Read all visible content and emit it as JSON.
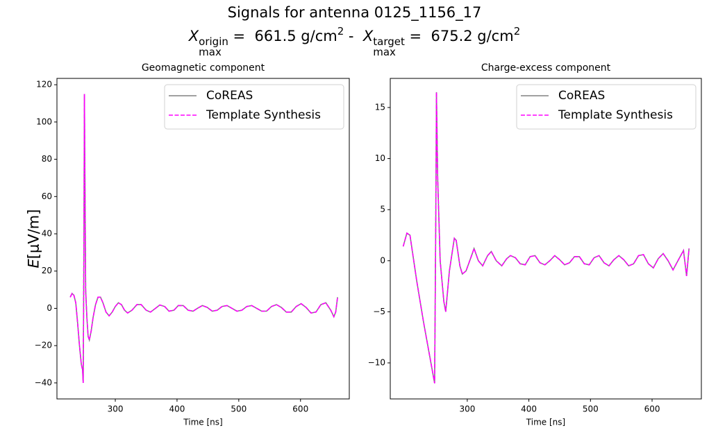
{
  "figure": {
    "title": "Signals for antenna 0125_1156_17",
    "subtitle_parts": [
      {
        "text": "X",
        "style": "italic"
      },
      {
        "sup": "origin",
        "sub": "max"
      },
      {
        "text": " =  661.5 g/cm"
      },
      {
        "sup": "2"
      },
      {
        "text": " -  "
      },
      {
        "text": "X",
        "style": "italic"
      },
      {
        "sup": "target",
        "sub": "max"
      },
      {
        "text": " =  675.2 g/cm"
      },
      {
        "sup": "2"
      }
    ]
  },
  "chart_data": [
    {
      "type": "line",
      "title": "Geomagnetic component",
      "xlabel": "Time [ns]",
      "ylabel_parts": [
        {
          "text": "E",
          "style": "italic"
        },
        {
          "text": "[μV/m]"
        }
      ],
      "xlim": [
        205.5,
        679
      ],
      "ylim": [
        -48.6,
        123.4
      ],
      "xticks": [
        300,
        400,
        500,
        600
      ],
      "yticks": [
        {
          "value": -40,
          "label": "−40"
        },
        {
          "value": -20,
          "label": "−20"
        },
        0,
        20,
        40,
        60,
        80,
        100,
        120
      ],
      "legend": "upper right",
      "x": [
        227,
        230,
        233,
        236,
        239,
        242,
        245,
        247,
        248,
        249,
        250,
        251,
        252,
        254,
        256,
        258,
        261,
        264,
        268,
        272,
        276,
        280,
        285,
        290,
        295,
        300,
        305,
        310,
        315,
        320,
        327,
        335,
        342,
        350,
        357,
        365,
        372,
        380,
        387,
        395,
        402,
        410,
        418,
        426,
        433,
        441,
        449,
        457,
        465,
        473,
        481,
        489,
        497,
        505,
        513,
        521,
        529,
        537,
        545,
        553,
        561,
        569,
        577,
        585,
        593,
        601,
        609,
        617,
        625,
        633,
        641,
        649,
        654,
        657,
        660
      ],
      "series": [
        {
          "name": "CoREAS",
          "color": "#808080",
          "dash": false,
          "values": [
            6,
            8,
            7,
            3,
            -8,
            -20,
            -30,
            -33,
            -40,
            20,
            115,
            60,
            10,
            -5,
            -15,
            -17,
            -12,
            -5,
            2,
            6,
            6,
            3,
            -2,
            -4,
            -2,
            1,
            3,
            2,
            -1,
            -2.5,
            -1,
            2,
            2,
            -1,
            -2,
            0,
            1.8,
            1,
            -1.5,
            -1,
            1.5,
            1.5,
            -1,
            -1.5,
            0,
            1.5,
            0.5,
            -1.5,
            -1,
            1,
            1.5,
            0,
            -1.5,
            -1,
            1,
            1.5,
            0,
            -1.5,
            -1.5,
            1,
            2,
            0.5,
            -2,
            -2,
            1,
            2.5,
            0.5,
            -2.5,
            -2,
            2,
            3,
            -1,
            -4.5,
            -2,
            6
          ]
        },
        {
          "name": "Template Synthesis",
          "color": "#ff00ff",
          "dash": true,
          "values": [
            6,
            8,
            7,
            3,
            -8,
            -20,
            -30,
            -33,
            -40,
            20,
            115,
            60,
            10,
            -5,
            -15,
            -17,
            -12,
            -5,
            2,
            6,
            6,
            3,
            -2,
            -4,
            -2,
            1,
            3,
            2,
            -1,
            -2.5,
            -1,
            2,
            2,
            -1,
            -2,
            0,
            1.8,
            1,
            -1.5,
            -1,
            1.5,
            1.5,
            -1,
            -1.5,
            0,
            1.5,
            0.5,
            -1.5,
            -1,
            1,
            1.5,
            0,
            -1.5,
            -1,
            1,
            1.5,
            0,
            -1.5,
            -1.5,
            1,
            2,
            0.5,
            -2,
            -2,
            1,
            2.5,
            0.5,
            -2.5,
            -2,
            2,
            3,
            -1,
            -4.5,
            -2,
            6
          ]
        }
      ]
    },
    {
      "type": "line",
      "title": "Charge-excess component",
      "xlabel": "Time [ns]",
      "xlim": [
        175,
        680
      ],
      "ylim": [
        -13.53,
        17.85
      ],
      "xticks": [
        300,
        400,
        500,
        600
      ],
      "yticks": [
        {
          "value": -10,
          "label": "−10"
        },
        {
          "value": -5,
          "label": "−5"
        },
        0,
        5,
        10,
        15
      ],
      "legend": "upper right",
      "x": [
        196,
        202,
        207,
        218,
        229,
        241,
        247,
        249,
        250,
        252,
        256,
        262,
        265,
        271,
        279,
        282,
        288,
        292,
        298,
        307,
        311,
        318,
        325,
        333,
        339,
        347,
        356,
        364,
        370,
        378,
        386,
        394,
        402,
        410,
        418,
        426,
        434,
        442,
        450,
        458,
        466,
        474,
        482,
        490,
        498,
        506,
        514,
        522,
        530,
        538,
        546,
        554,
        562,
        570,
        578,
        586,
        594,
        602,
        610,
        618,
        626,
        634,
        642,
        651,
        656,
        660
      ],
      "series": [
        {
          "name": "CoREAS",
          "color": "#808080",
          "dash": false,
          "values": [
            1.4,
            2.7,
            2.5,
            -2,
            -6,
            -10,
            -12,
            5,
            16.5,
            8,
            0,
            -4,
            -5,
            -1,
            2.2,
            2,
            -0.5,
            -1.3,
            -1,
            0.5,
            1.2,
            0,
            -0.5,
            0.5,
            0.9,
            0,
            -0.5,
            0.2,
            0.5,
            0.3,
            -0.3,
            -0.4,
            0.4,
            0.5,
            -0.2,
            -0.4,
            0,
            0.5,
            0.1,
            -0.4,
            -0.2,
            0.4,
            0.4,
            -0.3,
            -0.4,
            0.3,
            0.5,
            -0.2,
            -0.5,
            0.1,
            0.5,
            0.1,
            -0.5,
            -0.3,
            0.5,
            0.6,
            -0.3,
            -0.7,
            0.2,
            0.7,
            0,
            -0.9,
            0,
            1.0,
            -1.5,
            1.2
          ]
        },
        {
          "name": "Template Synthesis",
          "color": "#ff00ff",
          "dash": true,
          "values": [
            1.4,
            2.7,
            2.5,
            -2,
            -6,
            -10,
            -12,
            5,
            16.5,
            8,
            0,
            -4,
            -5,
            -1,
            2.2,
            2,
            -0.5,
            -1.3,
            -1,
            0.5,
            1.2,
            0,
            -0.5,
            0.5,
            0.9,
            0,
            -0.5,
            0.2,
            0.5,
            0.3,
            -0.3,
            -0.4,
            0.4,
            0.5,
            -0.2,
            -0.4,
            0,
            0.5,
            0.1,
            -0.4,
            -0.2,
            0.4,
            0.4,
            -0.3,
            -0.4,
            0.3,
            0.5,
            -0.2,
            -0.5,
            0.1,
            0.5,
            0.1,
            -0.5,
            -0.3,
            0.5,
            0.6,
            -0.3,
            -0.7,
            0.2,
            0.7,
            0,
            -0.9,
            0,
            1.0,
            -1.5,
            1.2
          ]
        }
      ]
    }
  ]
}
